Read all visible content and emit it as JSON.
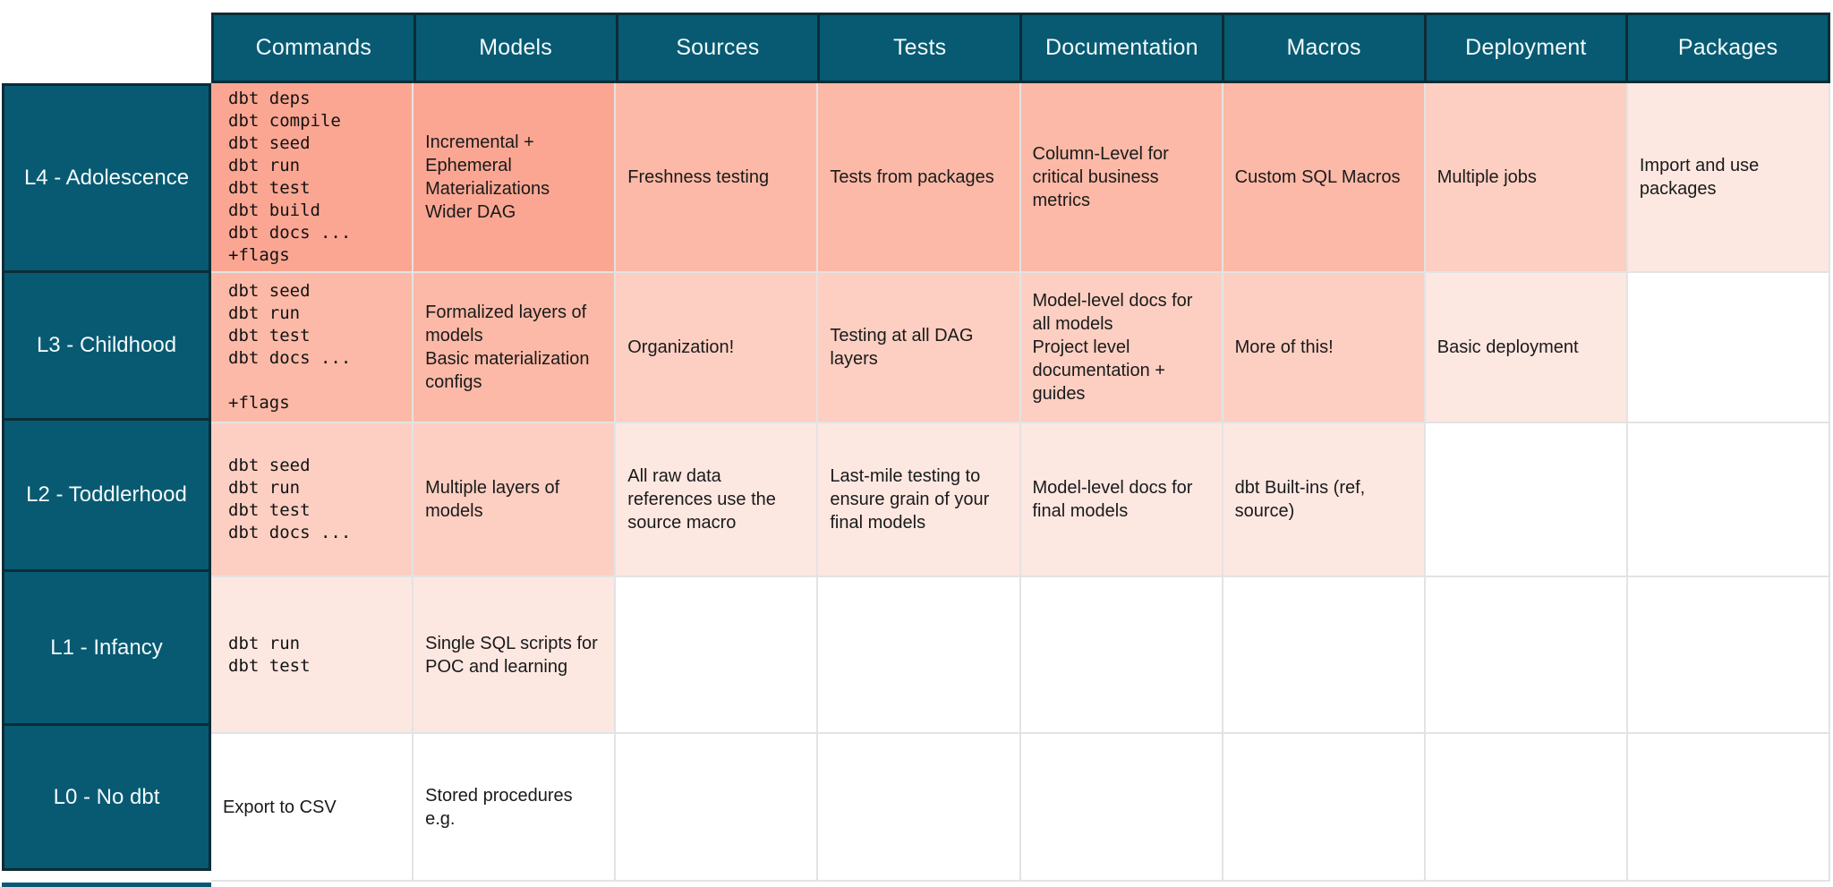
{
  "palette": {
    "teal": "#075A72",
    "teal_border": "#0D2C36",
    "header_text": "#F4FAFB",
    "grid_line": "#E3E3E3",
    "salmon_level_4": "#FBA693",
    "salmon_level_3": "#FCB9A7",
    "salmon_level_2": "#FCCFC2",
    "salmon_level_1": "#FDE7E1",
    "empty_cell": "#FFFFFF",
    "cell_text": "#1A1A1A"
  },
  "table": {
    "columns": [
      "Commands",
      "Models",
      "Sources",
      "Tests",
      "Documentation",
      "Macros",
      "Deployment",
      "Packages"
    ],
    "rows": [
      {
        "label": "L4 - Adolescence",
        "cells": [
          {
            "text": "dbt deps\ndbt compile\ndbt seed\ndbt run\ndbt test\ndbt build\ndbt docs ...\n+flags",
            "bg": "#FBA693"
          },
          {
            "text": "Incremental +\nEphemeral\nMaterializations\nWider DAG",
            "bg": "#FBA693"
          },
          {
            "text": "Freshness testing",
            "bg": "#FCB9A7"
          },
          {
            "text": "Tests from packages",
            "bg": "#FCB9A7"
          },
          {
            "text": "Column-Level for critical business metrics",
            "bg": "#FCB9A7"
          },
          {
            "text": "Custom SQL Macros",
            "bg": "#FCB9A7"
          },
          {
            "text": "Multiple jobs",
            "bg": "#FCCFC2"
          },
          {
            "text": "Import and use packages",
            "bg": "#FDE7E1"
          }
        ]
      },
      {
        "label": "L3 - Childhood",
        "cells": [
          {
            "text": "dbt seed\ndbt run\ndbt test\ndbt docs ...\n\n+flags",
            "bg": "#FCB9A7"
          },
          {
            "text": "Formalized layers of models\nBasic materialization configs",
            "bg": "#FCB9A7"
          },
          {
            "text": "Organization!",
            "bg": "#FCCFC2"
          },
          {
            "text": "Testing at all DAG layers",
            "bg": "#FCCFC2"
          },
          {
            "text": "Model-level docs for all models\nProject level documentation + guides",
            "bg": "#FCCFC2"
          },
          {
            "text": "More of this!",
            "bg": "#FCCFC2"
          },
          {
            "text": "Basic deployment",
            "bg": "#FDE7E1"
          },
          {
            "text": "",
            "bg": "#FFFFFF"
          }
        ]
      },
      {
        "label": "L2 - Toddlerhood",
        "cells": [
          {
            "text": "dbt seed\ndbt run\ndbt test\ndbt docs ...",
            "bg": "#FCCFC2"
          },
          {
            "text": "Multiple layers of models",
            "bg": "#FCCFC2"
          },
          {
            "text": "All raw data references use the source macro",
            "bg": "#FDE7E1"
          },
          {
            "text": "Last-mile testing to ensure grain of your final models",
            "bg": "#FDE7E1"
          },
          {
            "text": "Model-level docs for final models",
            "bg": "#FDE7E1"
          },
          {
            "text": "dbt Built-ins (ref, source)",
            "bg": "#FDE7E1"
          },
          {
            "text": "",
            "bg": "#FFFFFF"
          },
          {
            "text": "",
            "bg": "#FFFFFF"
          }
        ]
      },
      {
        "label": "L1 - Infancy",
        "cells": [
          {
            "text": "dbt run\ndbt test",
            "bg": "#FDE7E1"
          },
          {
            "text": "Single SQL scripts for POC and learning",
            "bg": "#FDE7E1"
          },
          {
            "text": "",
            "bg": "#FFFFFF"
          },
          {
            "text": "",
            "bg": "#FFFFFF"
          },
          {
            "text": "",
            "bg": "#FFFFFF"
          },
          {
            "text": "",
            "bg": "#FFFFFF"
          },
          {
            "text": "",
            "bg": "#FFFFFF"
          },
          {
            "text": "",
            "bg": "#FFFFFF"
          }
        ]
      },
      {
        "label": "L0 - No dbt",
        "cells": [
          {
            "text": "Export to CSV",
            "bg": "#FFFFFF"
          },
          {
            "text": "Stored procedures e.g.",
            "bg": "#FFFFFF"
          },
          {
            "text": "",
            "bg": "#FFFFFF"
          },
          {
            "text": "",
            "bg": "#FFFFFF"
          },
          {
            "text": "",
            "bg": "#FFFFFF"
          },
          {
            "text": "",
            "bg": "#FFFFFF"
          },
          {
            "text": "",
            "bg": "#FFFFFF"
          },
          {
            "text": "",
            "bg": "#FFFFFF"
          }
        ]
      }
    ]
  }
}
